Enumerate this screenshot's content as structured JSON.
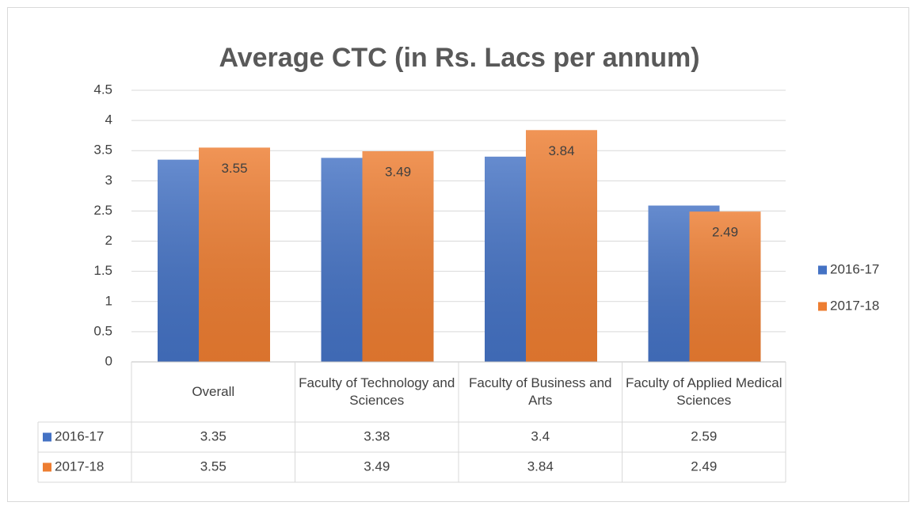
{
  "chart_data": {
    "type": "bar",
    "title": "Average CTC (in Rs. Lacs per annum)",
    "categories": [
      "Overall",
      "Faculty of Technology and Sciences",
      "Faculty of Business and Arts",
      "Faculty of Applied Medical Sciences"
    ],
    "series": [
      {
        "name": "2016-17",
        "color": "#4472c4",
        "values": [
          3.35,
          3.38,
          3.4,
          2.59
        ]
      },
      {
        "name": "2017-18",
        "color": "#ed7d31",
        "values": [
          3.55,
          3.49,
          3.84,
          2.49
        ],
        "data_labels": true
      }
    ],
    "ylim": [
      0,
      4.5
    ],
    "yticks": [
      0,
      0.5,
      1,
      1.5,
      2,
      2.5,
      3,
      3.5,
      4,
      4.5
    ],
    "grid": true,
    "legend": "right",
    "data_table": true
  }
}
